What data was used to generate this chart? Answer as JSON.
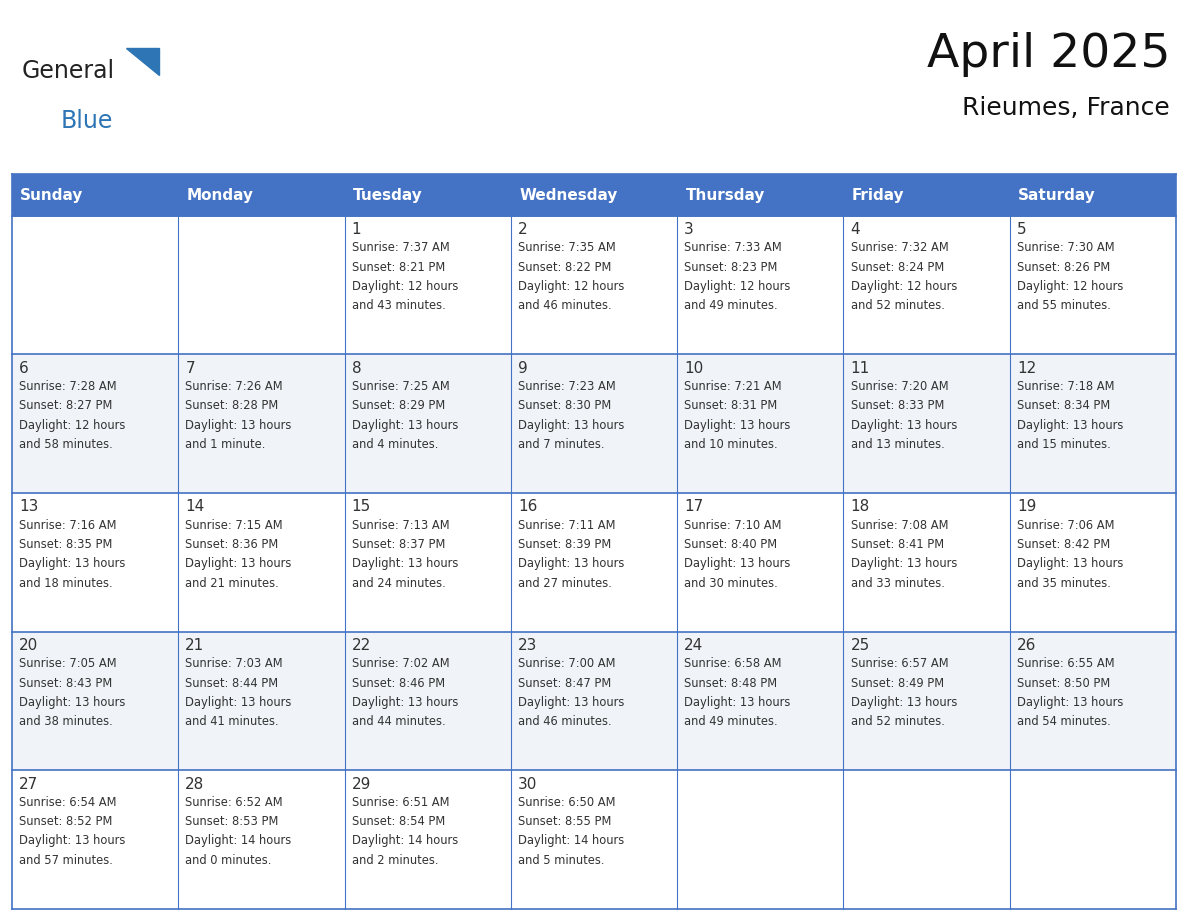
{
  "title": "April 2025",
  "subtitle": "Rieumes, France",
  "header_color": "#4472C4",
  "header_text_color": "#FFFFFF",
  "border_color": "#4472C4",
  "text_color": "#333333",
  "days_of_week": [
    "Sunday",
    "Monday",
    "Tuesday",
    "Wednesday",
    "Thursday",
    "Friday",
    "Saturday"
  ],
  "weeks": [
    [
      {
        "day": "",
        "info": ""
      },
      {
        "day": "",
        "info": ""
      },
      {
        "day": "1",
        "info": "Sunrise: 7:37 AM\nSunset: 8:21 PM\nDaylight: 12 hours\nand 43 minutes."
      },
      {
        "day": "2",
        "info": "Sunrise: 7:35 AM\nSunset: 8:22 PM\nDaylight: 12 hours\nand 46 minutes."
      },
      {
        "day": "3",
        "info": "Sunrise: 7:33 AM\nSunset: 8:23 PM\nDaylight: 12 hours\nand 49 minutes."
      },
      {
        "day": "4",
        "info": "Sunrise: 7:32 AM\nSunset: 8:24 PM\nDaylight: 12 hours\nand 52 minutes."
      },
      {
        "day": "5",
        "info": "Sunrise: 7:30 AM\nSunset: 8:26 PM\nDaylight: 12 hours\nand 55 minutes."
      }
    ],
    [
      {
        "day": "6",
        "info": "Sunrise: 7:28 AM\nSunset: 8:27 PM\nDaylight: 12 hours\nand 58 minutes."
      },
      {
        "day": "7",
        "info": "Sunrise: 7:26 AM\nSunset: 8:28 PM\nDaylight: 13 hours\nand 1 minute."
      },
      {
        "day": "8",
        "info": "Sunrise: 7:25 AM\nSunset: 8:29 PM\nDaylight: 13 hours\nand 4 minutes."
      },
      {
        "day": "9",
        "info": "Sunrise: 7:23 AM\nSunset: 8:30 PM\nDaylight: 13 hours\nand 7 minutes."
      },
      {
        "day": "10",
        "info": "Sunrise: 7:21 AM\nSunset: 8:31 PM\nDaylight: 13 hours\nand 10 minutes."
      },
      {
        "day": "11",
        "info": "Sunrise: 7:20 AM\nSunset: 8:33 PM\nDaylight: 13 hours\nand 13 minutes."
      },
      {
        "day": "12",
        "info": "Sunrise: 7:18 AM\nSunset: 8:34 PM\nDaylight: 13 hours\nand 15 minutes."
      }
    ],
    [
      {
        "day": "13",
        "info": "Sunrise: 7:16 AM\nSunset: 8:35 PM\nDaylight: 13 hours\nand 18 minutes."
      },
      {
        "day": "14",
        "info": "Sunrise: 7:15 AM\nSunset: 8:36 PM\nDaylight: 13 hours\nand 21 minutes."
      },
      {
        "day": "15",
        "info": "Sunrise: 7:13 AM\nSunset: 8:37 PM\nDaylight: 13 hours\nand 24 minutes."
      },
      {
        "day": "16",
        "info": "Sunrise: 7:11 AM\nSunset: 8:39 PM\nDaylight: 13 hours\nand 27 minutes."
      },
      {
        "day": "17",
        "info": "Sunrise: 7:10 AM\nSunset: 8:40 PM\nDaylight: 13 hours\nand 30 minutes."
      },
      {
        "day": "18",
        "info": "Sunrise: 7:08 AM\nSunset: 8:41 PM\nDaylight: 13 hours\nand 33 minutes."
      },
      {
        "day": "19",
        "info": "Sunrise: 7:06 AM\nSunset: 8:42 PM\nDaylight: 13 hours\nand 35 minutes."
      }
    ],
    [
      {
        "day": "20",
        "info": "Sunrise: 7:05 AM\nSunset: 8:43 PM\nDaylight: 13 hours\nand 38 minutes."
      },
      {
        "day": "21",
        "info": "Sunrise: 7:03 AM\nSunset: 8:44 PM\nDaylight: 13 hours\nand 41 minutes."
      },
      {
        "day": "22",
        "info": "Sunrise: 7:02 AM\nSunset: 8:46 PM\nDaylight: 13 hours\nand 44 minutes."
      },
      {
        "day": "23",
        "info": "Sunrise: 7:00 AM\nSunset: 8:47 PM\nDaylight: 13 hours\nand 46 minutes."
      },
      {
        "day": "24",
        "info": "Sunrise: 6:58 AM\nSunset: 8:48 PM\nDaylight: 13 hours\nand 49 minutes."
      },
      {
        "day": "25",
        "info": "Sunrise: 6:57 AM\nSunset: 8:49 PM\nDaylight: 13 hours\nand 52 minutes."
      },
      {
        "day": "26",
        "info": "Sunrise: 6:55 AM\nSunset: 8:50 PM\nDaylight: 13 hours\nand 54 minutes."
      }
    ],
    [
      {
        "day": "27",
        "info": "Sunrise: 6:54 AM\nSunset: 8:52 PM\nDaylight: 13 hours\nand 57 minutes."
      },
      {
        "day": "28",
        "info": "Sunrise: 6:52 AM\nSunset: 8:53 PM\nDaylight: 14 hours\nand 0 minutes."
      },
      {
        "day": "29",
        "info": "Sunrise: 6:51 AM\nSunset: 8:54 PM\nDaylight: 14 hours\nand 2 minutes."
      },
      {
        "day": "30",
        "info": "Sunrise: 6:50 AM\nSunset: 8:55 PM\nDaylight: 14 hours\nand 5 minutes."
      },
      {
        "day": "",
        "info": ""
      },
      {
        "day": "",
        "info": ""
      },
      {
        "day": "",
        "info": ""
      }
    ]
  ],
  "logo_text_general": "General",
  "logo_text_blue": "Blue",
  "logo_color_general": "#222222",
  "logo_color_blue": "#2E75B6",
  "logo_triangle_color": "#2E75B6"
}
